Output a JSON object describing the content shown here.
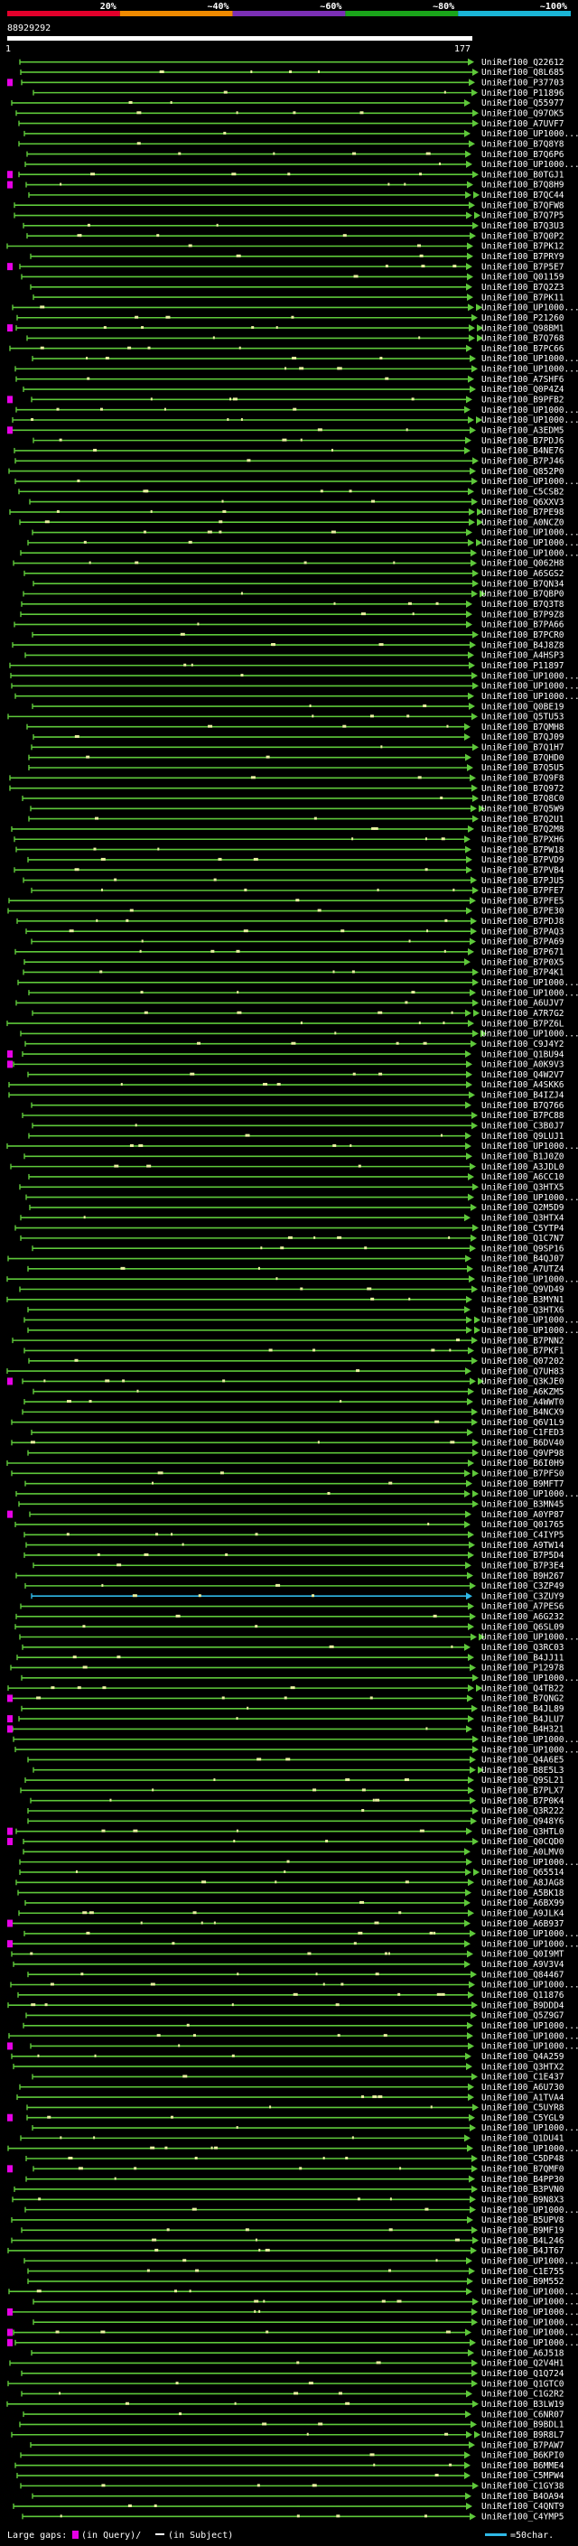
{
  "chart_data": {
    "type": "alignment-overview",
    "query_id": "88929292",
    "query_start": "1",
    "query_end": "177",
    "query_length": 177,
    "identity_scale": {
      "labels": [
        "20%",
        "~40%",
        "~60%",
        "~80%",
        "~100%"
      ],
      "colors": [
        "#e3002b",
        "#f08a00",
        "#7b2fb5",
        "#1aa51a",
        "#1ab5d6"
      ]
    },
    "row_color": "#5ec83a",
    "highlight_color": "#2fb8e6",
    "gap_query_color": "#e600e6",
    "gap_subject_color": "#ffffff",
    "hit_labels": [
      "UniRef100_Q22612",
      "UniRef100_Q8L685",
      "UniRef100_P37703",
      "UniRef100_P11896",
      "UniRef100_Q55977",
      "UniRef100_Q97OK5",
      "UniRef100_A7UVF7",
      "UniRef100_UP1000...",
      "UniRef100_B7Q8Y8",
      "UniRef100_B7Q6P6",
      "UniRef100_UP1000...",
      "UniRef100_B0TGJ1",
      "UniRef100_B7Q8H9",
      "UniRef100_B7QC44",
      "UniRef100_B7QFW8",
      "UniRef100_B7Q7P5",
      "UniRef100_B7Q3U3",
      "UniRef100_B7Q0P2",
      "UniRef100_B7PK12",
      "UniRef100_B7PRY9",
      "UniRef100_B7P5E7",
      "UniRef100_Q01159",
      "UniRef100_B7Q2Z3",
      "UniRef100_B7PK11",
      "UniRef100_UP1000...",
      "UniRef100_P21260",
      "UniRef100_Q98BM1",
      "UniRef100_B7Q768",
      "UniRef100_B7PC66",
      "UniRef100_UP1000...",
      "UniRef100_UP1000...",
      "UniRef100_A7SHF6",
      "UniRef100_Q0P4Z4",
      "UniRef100_B9PFB2",
      "UniRef100_UP1000...",
      "UniRef100_UP1000...",
      "UniRef100_A3EDM5",
      "UniRef100_B7PDJ6",
      "UniRef100_B4NE76",
      "UniRef100_B7PJ46",
      "UniRef100_Q852P0",
      "UniRef100_UP1000...",
      "UniRef100_C5CSB2",
      "UniRef100_Q6XXV3",
      "UniRef100_B7PE98",
      "UniRef100_A0NCZ0",
      "UniRef100_UP1000...",
      "UniRef100_UP1000...",
      "UniRef100_UP1000...",
      "UniRef100_Q062H8",
      "UniRef100_A6SGS2",
      "UniRef100_B7QN34",
      "UniRef100_B7QBP0",
      "UniRef100_B7Q3T8",
      "UniRef100_B7P9Z8",
      "UniRef100_B7PA66",
      "UniRef100_B7PCR0",
      "UniRef100_B4J8Z8",
      "UniRef100_A4HSP3",
      "UniRef100_P11897",
      "UniRef100_UP1000...",
      "UniRef100_UP1000...",
      "UniRef100_UP1000...",
      "UniRef100_Q0BE19",
      "UniRef100_Q5TU53",
      "UniRef100_B7QMH8",
      "UniRef100_B7QJ09",
      "UniRef100_B7Q1H7",
      "UniRef100_B7QHD0",
      "UniRef100_B7Q5U5",
      "UniRef100_B7Q9F8",
      "UniRef100_B7Q972",
      "UniRef100_B7Q8C0",
      "UniRef100_B7Q5W9",
      "UniRef100_B7Q2U1",
      "UniRef100_B7Q2M8",
      "UniRef100_B7PXH6",
      "UniRef100_B7PW18",
      "UniRef100_B7PVD9",
      "UniRef100_B7PVB4",
      "UniRef100_B7PJU5",
      "UniRef100_B7PFE7",
      "UniRef100_B7PFE5",
      "UniRef100_B7PE30",
      "UniRef100_B7PDJ8",
      "UniRef100_B7PAQ3",
      "UniRef100_B7PA69",
      "UniRef100_B7P671",
      "UniRef100_B7P0X5",
      "UniRef100_B7P4K1",
      "UniRef100_UP1000...",
      "UniRef100_UP1000...",
      "UniRef100_A6UJV7",
      "UniRef100_A7R7G2",
      "UniRef100_B7PZ6L",
      "UniRef100_UP1000...",
      "UniRef100_C9J4Y2",
      "UniRef100_Q1BU94",
      "UniRef100_A0K9V3",
      "UniRef100_Q4W2V7",
      "UniRef100_A4SKK6",
      "UniRef100_B4IZJ4",
      "UniRef100_B7Q766",
      "UniRef100_B7PC88",
      "UniRef100_C3B0J7",
      "UniRef100_Q9LUJ1",
      "UniRef100_UP1000...",
      "UniRef100_B1J0Z0",
      "UniRef100_A3JDL0",
      "UniRef100_A6CC10",
      "UniRef100_Q3HTX5",
      "UniRef100_UP1000...",
      "UniRef100_Q2M5D9",
      "UniRef100_Q3HTX4",
      "UniRef100_C5YTP4",
      "UniRef100_Q1C7N7",
      "UniRef100_Q9SP16",
      "UniRef100_B4QJ07",
      "UniRef100_A7UTZ4",
      "UniRef100_UP1000...",
      "UniRef100_Q9VD49",
      "UniRef100_B3MYN1",
      "UniRef100_Q3HTX6",
      "UniRef100_UP1000...",
      "UniRef100_UP1000...",
      "UniRef100_B7PNN2",
      "UniRef100_B7PKF1",
      "UniRef100_Q07202",
      "UniRef100_Q7UH83",
      "UniRef100_Q3KJE0",
      "UniRef100_A6KZM5",
      "UniRef100_A4WWT0",
      "UniRef100_B4NCX9",
      "UniRef100_Q6V1L9",
      "UniRef100_C1FED3",
      "UniRef100_B6DV40",
      "UniRef100_Q9VP98",
      "UniRef100_B6I0H9",
      "UniRef100_B7PFS0",
      "UniRef100_B9MFT7",
      "UniRef100_UP1000...",
      "UniRef100_B3MN45",
      "UniRef100_A0YP87",
      "UniRef100_Q01765",
      "UniRef100_C4IYP5",
      "UniRef100_A9TW14",
      "UniRef100_B7P5D4",
      "UniRef100_B7P3E4",
      "UniRef100_B9H267",
      "UniRef100_C3ZP49",
      "UniRef100_C3ZUY9",
      "UniRef100_A7PES6",
      "UniRef100_A6G232",
      "UniRef100_Q6SL09",
      "UniRef100_UP1000...",
      "UniRef100_Q3RC03",
      "UniRef100_B4JJ11",
      "UniRef100_P12978",
      "UniRef100_UP1000...",
      "UniRef100_Q4TB22",
      "UniRef100_B7QNG2",
      "UniRef100_B4JL89",
      "UniRef100_B4JLU7",
      "UniRef100_B4H321",
      "UniRef100_UP1000...",
      "UniRef100_UP1000...",
      "UniRef100_Q4A6E5",
      "UniRef100_B8E5L3",
      "UniRef100_Q9SL21",
      "UniRef100_B7PLX7",
      "UniRef100_B7P0K4",
      "UniRef100_Q3R222",
      "UniRef100_Q948Y6",
      "UniRef100_Q3HTL0",
      "UniRef100_Q0CQD0",
      "UniRef100_A0LMV0",
      "UniRef100_UP1000...",
      "UniRef100_Q65514",
      "UniRef100_A8JAG8",
      "UniRef100_A5BK18",
      "UniRef100_A6BX99",
      "UniRef100_A9JLK4",
      "UniRef100_A6B937",
      "UniRef100_UP1000...",
      "UniRef100_UP1000...",
      "UniRef100_Q0I9MT",
      "UniRef100_A9V3V4",
      "UniRef100_Q84467",
      "UniRef100_UP1000...",
      "UniRef100_Q11876",
      "UniRef100_B9DDD4",
      "UniRef100_Q5Z9G7",
      "UniRef100_UP1000...",
      "UniRef100_UP1000...",
      "UniRef100_UP1000...",
      "UniRef100_Q4A259",
      "UniRef100_Q3HTX2",
      "UniRef100_C1E437",
      "UniRef100_A6U730",
      "UniRef100_A1TVA4",
      "UniRef100_C5UYR8",
      "UniRef100_C5YGL9",
      "UniRef100_UP1000...",
      "UniRef100_Q1DU41",
      "UniRef100_UP1000...",
      "UniRef100_C5DP48",
      "UniRef100_B7QMF0",
      "UniRef100_B4PP30",
      "UniRef100_B3PVN0",
      "UniRef100_B9N8X3",
      "UniRef100_UP1000...",
      "UniRef100_B5UPV8",
      "UniRef100_B9MF19",
      "UniRef100_B4L246",
      "UniRef100_B4JT67",
      "UniRef100_UP1000...",
      "UniRef100_C1E755",
      "UniRef100_B9M552",
      "UniRef100_UP1000...",
      "UniRef100_UP1000...",
      "UniRef100_UP1000...",
      "UniRef100_UP1000...",
      "UniRef100_UP1000...",
      "UniRef100_UP1000...",
      "UniRef100_A6J518",
      "UniRef100_Q2V4H1",
      "UniRef100_Q1Q724",
      "UniRef100_Q1GTC0",
      "UniRef100_C1G2R2",
      "UniRef100_B3LW19",
      "UniRef100_C6NR07",
      "UniRef100_B9BDL1",
      "UniRef100_B9R8L7",
      "UniRef100_B7PAW7",
      "UniRef100_B6KPI0",
      "UniRef100_B6MME4",
      "UniRef100_C5MPW4",
      "UniRef100_C1GY38",
      "UniRef100_B4OA94",
      "UniRef100_C4QNT9",
      "UniRef100_C4YMP5"
    ],
    "legend": {
      "large_gaps_prefix": "Large gaps:",
      "gap_query_label": "(in Query)/",
      "gap_subject_label": "(in Subject)",
      "scale_label": "=50char."
    }
  }
}
